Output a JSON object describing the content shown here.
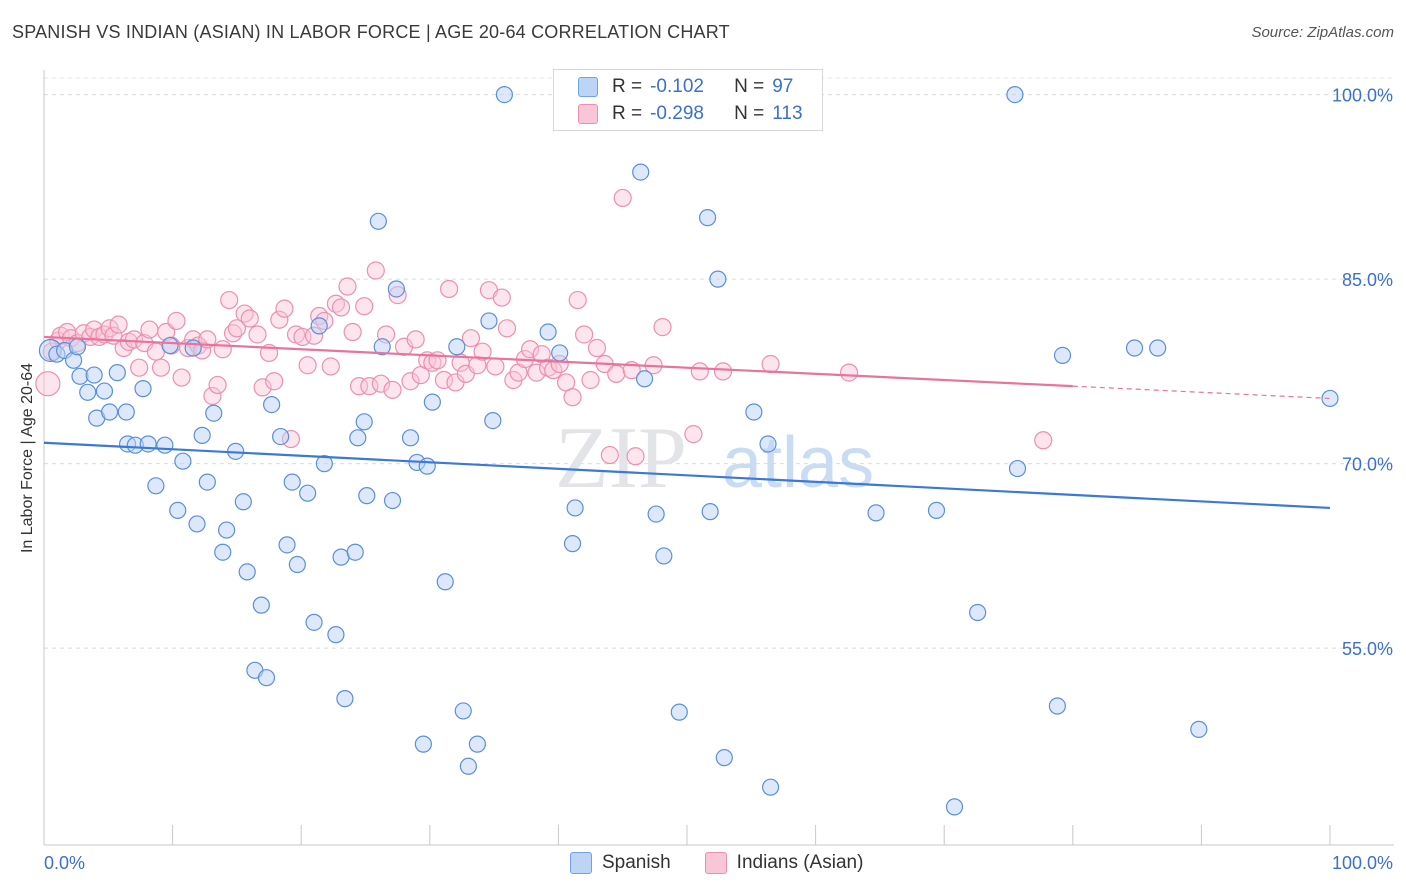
{
  "title": "SPANISH VS INDIAN (ASIAN) IN LABOR FORCE | AGE 20-64 CORRELATION CHART",
  "source": "Source: ZipAtlas.com",
  "watermark": {
    "zip": "ZIP",
    "atlas": "atlas"
  },
  "legend": {
    "rows": [
      {
        "r_label": "R =",
        "r_value": "-0.102",
        "n_label": "N =",
        "n_value": "97",
        "color": "#6fa3e8",
        "fill": "#bcd4f5"
      },
      {
        "r_label": "R =",
        "r_value": "-0.298",
        "n_label": "N =",
        "n_value": "113",
        "color": "#ee8fb0",
        "fill": "#f8c6d6"
      }
    ]
  },
  "bottom_legend": [
    {
      "label": "Spanish",
      "color": "#6fa3e8",
      "fill": "#bcd4f5"
    },
    {
      "label": "Indians (Asian)",
      "color": "#ee8fb0",
      "fill": "#f8c6d6"
    }
  ],
  "chart_data": {
    "type": "scatter",
    "title": "SPANISH VS INDIAN (ASIAN) IN LABOR FORCE | AGE 20-64 CORRELATION CHART",
    "xlabel": "",
    "ylabel": "In Labor Force | Age 20-64",
    "xlim": [
      0,
      100
    ],
    "ylim": [
      39,
      102
    ],
    "x_tick_labels": [
      "0.0%",
      "100.0%"
    ],
    "y_ticks": [
      55,
      70,
      85,
      100
    ],
    "y_tick_labels": [
      "55.0%",
      "70.0%",
      "85.0%",
      "100.0%"
    ],
    "grid": "horizontal dashed",
    "legend_position": "top-center",
    "colors": {
      "spanish": "#3b78d8",
      "indian": "#e8739b"
    },
    "series": [
      {
        "name": "Spanish",
        "trend": {
          "x": [
            0,
            100
          ],
          "y": [
            71.7,
            66.4
          ]
        },
        "points": [
          [
            0.5,
            79.2
          ],
          [
            1,
            78.9
          ],
          [
            1.6,
            79.2
          ],
          [
            2.3,
            78.4
          ],
          [
            2.6,
            79.5
          ],
          [
            2.8,
            77.1
          ],
          [
            3.9,
            77.2
          ],
          [
            3.4,
            75.8
          ],
          [
            4.1,
            73.7
          ],
          [
            4.7,
            75.9
          ],
          [
            5.1,
            74.2
          ],
          [
            5.7,
            77.4
          ],
          [
            6.4,
            74.2
          ],
          [
            6.5,
            71.6
          ],
          [
            7.1,
            71.5
          ],
          [
            7.7,
            76.1
          ],
          [
            8.1,
            71.6
          ],
          [
            8.7,
            68.2
          ],
          [
            9.4,
            71.5
          ],
          [
            9.8,
            79.6
          ],
          [
            10.4,
            66.2
          ],
          [
            10.8,
            70.2
          ],
          [
            11.6,
            79.4
          ],
          [
            11.9,
            65.1
          ],
          [
            12.3,
            72.3
          ],
          [
            12.7,
            68.5
          ],
          [
            13.2,
            74.1
          ],
          [
            13.9,
            62.8
          ],
          [
            14.2,
            64.6
          ],
          [
            14.9,
            71
          ],
          [
            15.5,
            66.9
          ],
          [
            15.8,
            61.2
          ],
          [
            16.4,
            53.2
          ],
          [
            16.9,
            58.5
          ],
          [
            17.3,
            52.6
          ],
          [
            17.7,
            74.8
          ],
          [
            18.4,
            72.2
          ],
          [
            18.9,
            63.4
          ],
          [
            19.3,
            68.5
          ],
          [
            19.7,
            61.8
          ],
          [
            20.5,
            67.6
          ],
          [
            21,
            57.1
          ],
          [
            21.4,
            81.2
          ],
          [
            21.8,
            70
          ],
          [
            22.7,
            56.1
          ],
          [
            23.1,
            62.4
          ],
          [
            23.4,
            50.9
          ],
          [
            24.2,
            62.8
          ],
          [
            24.9,
            73.4
          ],
          [
            24.4,
            72.1
          ],
          [
            25.1,
            67.4
          ],
          [
            26,
            89.7
          ],
          [
            26.3,
            79.5
          ],
          [
            27.1,
            67
          ],
          [
            27.4,
            84.2
          ],
          [
            28.5,
            72.1
          ],
          [
            29,
            70.1
          ],
          [
            29.5,
            47.2
          ],
          [
            29.8,
            69.8
          ],
          [
            30.2,
            75
          ],
          [
            31.2,
            60.4
          ],
          [
            32.1,
            79.5
          ],
          [
            32.6,
            49.9
          ],
          [
            33,
            45.4
          ],
          [
            33.7,
            47.2
          ],
          [
            34.6,
            81.6
          ],
          [
            34.9,
            73.5
          ],
          [
            35.8,
            100
          ],
          [
            39.2,
            80.7
          ],
          [
            40.1,
            79
          ],
          [
            41.1,
            63.5
          ],
          [
            41.3,
            66.4
          ],
          [
            44.5,
            100
          ],
          [
            46.4,
            93.7
          ],
          [
            46.7,
            76.9
          ],
          [
            47.6,
            65.9
          ],
          [
            48.2,
            62.5
          ],
          [
            49.4,
            49.8
          ],
          [
            51.6,
            90
          ],
          [
            51.8,
            66.1
          ],
          [
            52.4,
            85
          ],
          [
            52.9,
            46.1
          ],
          [
            55.2,
            74.2
          ],
          [
            56.3,
            71.6
          ],
          [
            56.5,
            43.7
          ],
          [
            64.7,
            66
          ],
          [
            69.4,
            66.2
          ],
          [
            70.8,
            42.1
          ],
          [
            72.6,
            57.9
          ],
          [
            75.5,
            100
          ],
          [
            75.7,
            69.6
          ],
          [
            78.8,
            50.3
          ],
          [
            79.2,
            78.8
          ],
          [
            84.8,
            79.4
          ],
          [
            86.6,
            79.4
          ],
          [
            89.8,
            48.4
          ],
          [
            100,
            75.3
          ]
        ]
      },
      {
        "name": "Indians (Asian)",
        "trend": {
          "x": [
            0,
            80
          ],
          "y": [
            80.3,
            76.3
          ]
        },
        "trend_dashed": {
          "x": [
            80,
            100
          ],
          "y": [
            76.3,
            75.3
          ]
        },
        "points": [
          [
            0.3,
            76.5
          ],
          [
            0.6,
            79.1
          ],
          [
            1.1,
            80
          ],
          [
            1.3,
            80.4
          ],
          [
            1.8,
            80.7
          ],
          [
            2.1,
            80.2
          ],
          [
            2.6,
            79.8
          ],
          [
            3.1,
            80.6
          ],
          [
            3.6,
            80.3
          ],
          [
            3.9,
            80.9
          ],
          [
            4.3,
            80.3
          ],
          [
            4.7,
            80.5
          ],
          [
            5.1,
            81
          ],
          [
            5.4,
            80.4
          ],
          [
            5.8,
            81.3
          ],
          [
            6.2,
            79.4
          ],
          [
            6.6,
            79.9
          ],
          [
            7,
            80.1
          ],
          [
            7.4,
            77.8
          ],
          [
            7.8,
            79.8
          ],
          [
            8.2,
            80.9
          ],
          [
            8.7,
            79.1
          ],
          [
            9.1,
            77.8
          ],
          [
            9.5,
            80.7
          ],
          [
            9.9,
            79.6
          ],
          [
            10.3,
            81.6
          ],
          [
            10.7,
            77
          ],
          [
            11.2,
            79.4
          ],
          [
            11.6,
            80.1
          ],
          [
            12,
            79.6
          ],
          [
            12.3,
            79.2
          ],
          [
            12.7,
            80.1
          ],
          [
            13.1,
            75.5
          ],
          [
            13.5,
            76.4
          ],
          [
            13.9,
            79.3
          ],
          [
            14.4,
            83.3
          ],
          [
            14.7,
            80.6
          ],
          [
            15,
            81
          ],
          [
            15.6,
            82.2
          ],
          [
            16,
            81.8
          ],
          [
            16.6,
            80.5
          ],
          [
            17,
            76.2
          ],
          [
            17.5,
            79
          ],
          [
            17.9,
            76.7
          ],
          [
            18.3,
            81.7
          ],
          [
            18.7,
            82.6
          ],
          [
            19.2,
            72
          ],
          [
            19.6,
            80.5
          ],
          [
            20.1,
            80.3
          ],
          [
            20.5,
            78
          ],
          [
            21,
            80.4
          ],
          [
            21.4,
            82
          ],
          [
            21.8,
            81.6
          ],
          [
            22.3,
            77.9
          ],
          [
            22.7,
            83
          ],
          [
            23.1,
            82.7
          ],
          [
            23.6,
            84.4
          ],
          [
            24,
            80.7
          ],
          [
            24.5,
            76.3
          ],
          [
            24.9,
            82.8
          ],
          [
            25.3,
            76.3
          ],
          [
            25.8,
            85.7
          ],
          [
            26.2,
            76.5
          ],
          [
            26.6,
            80.5
          ],
          [
            27.1,
            76
          ],
          [
            27.5,
            83.7
          ],
          [
            28,
            79.5
          ],
          [
            28.5,
            76.7
          ],
          [
            28.9,
            80.1
          ],
          [
            29.3,
            77.2
          ],
          [
            29.8,
            78.4
          ],
          [
            30.2,
            78.2
          ],
          [
            30.6,
            78.4
          ],
          [
            31.1,
            76.8
          ],
          [
            31.5,
            84.2
          ],
          [
            32,
            76.6
          ],
          [
            32.4,
            78.2
          ],
          [
            32.8,
            77.3
          ],
          [
            33.2,
            80.2
          ],
          [
            33.7,
            78
          ],
          [
            34.1,
            79.1
          ],
          [
            34.6,
            84.1
          ],
          [
            35.1,
            77.9
          ],
          [
            35.6,
            83.5
          ],
          [
            36,
            81
          ],
          [
            36.5,
            76.8
          ],
          [
            36.9,
            77.4
          ],
          [
            37.4,
            78.5
          ],
          [
            37.8,
            79.3
          ],
          [
            38.3,
            77.4
          ],
          [
            38.7,
            78.9
          ],
          [
            39.2,
            77.8
          ],
          [
            39.6,
            77.6
          ],
          [
            40.1,
            78.1
          ],
          [
            40.6,
            76.6
          ],
          [
            41.1,
            75.4
          ],
          [
            41.5,
            83.3
          ],
          [
            42,
            80.5
          ],
          [
            42.5,
            76.8
          ],
          [
            43,
            79.4
          ],
          [
            43.6,
            78.1
          ],
          [
            44,
            70.7
          ],
          [
            44.5,
            77.3
          ],
          [
            45,
            91.6
          ],
          [
            45.7,
            77.6
          ],
          [
            46,
            70.6
          ],
          [
            47.4,
            78
          ],
          [
            48.1,
            81.1
          ],
          [
            50.5,
            72.4
          ],
          [
            51,
            77.5
          ],
          [
            52.8,
            77.5
          ],
          [
            56.5,
            78.1
          ],
          [
            62.6,
            77.4
          ],
          [
            77.7,
            71.9
          ]
        ]
      }
    ]
  }
}
